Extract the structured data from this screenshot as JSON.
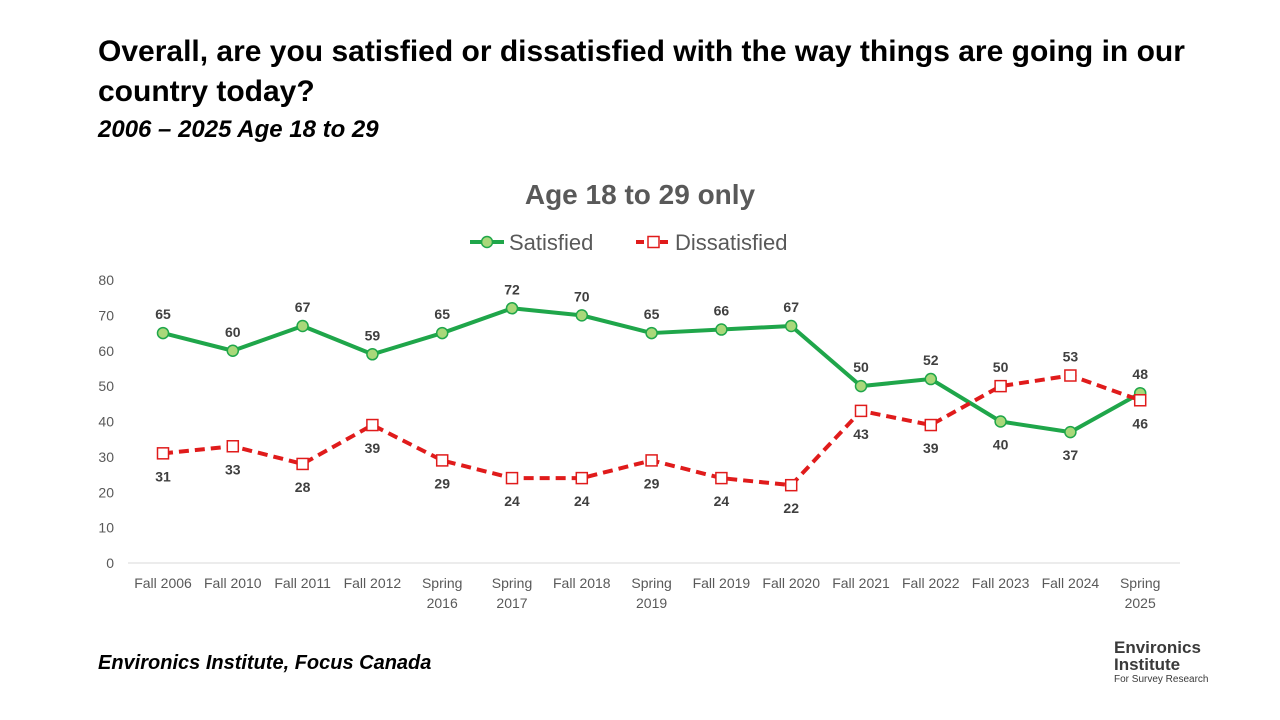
{
  "header": {
    "title": "Overall, are you satisfied or dissatisfied with the way things are going in our country today?",
    "subtitle": "2006 – 2025  Age 18 to 29"
  },
  "footer": {
    "source": "Environics Institute, Focus Canada"
  },
  "logo": {
    "line1": "Environics",
    "line2": "Institute",
    "line3": "For Survey Research"
  },
  "chart_data": {
    "type": "line",
    "title": "Age 18 to 29 only",
    "categories": [
      [
        "Fall 2006"
      ],
      [
        "Fall 2010"
      ],
      [
        "Fall 2011"
      ],
      [
        "Fall 2012"
      ],
      [
        "Spring",
        "2016"
      ],
      [
        "Spring",
        "2017"
      ],
      [
        "Fall 2018"
      ],
      [
        "Spring",
        "2019"
      ],
      [
        "Fall 2019"
      ],
      [
        "Fall 2020"
      ],
      [
        "Fall 2021"
      ],
      [
        "Fall 2022"
      ],
      [
        "Fall 2023"
      ],
      [
        "Fall 2024"
      ],
      [
        "Spring",
        "2025"
      ]
    ],
    "series": [
      {
        "name": "Satisfied",
        "color": "#1fa64a",
        "marker": "circle",
        "line": "solid",
        "values": [
          65,
          60,
          67,
          59,
          65,
          72,
          70,
          65,
          66,
          67,
          50,
          52,
          40,
          37,
          48
        ]
      },
      {
        "name": "Dissatisfied",
        "color": "#e01b1b",
        "marker": "square",
        "line": "dashed",
        "values": [
          31,
          33,
          28,
          39,
          29,
          24,
          24,
          29,
          24,
          22,
          43,
          39,
          50,
          53,
          46
        ]
      }
    ],
    "ylim": [
      0,
      80
    ],
    "yticks": [
      0,
      10,
      20,
      30,
      40,
      50,
      60,
      70,
      80
    ],
    "grid": false,
    "legend": "top-center",
    "data_labels": true
  }
}
